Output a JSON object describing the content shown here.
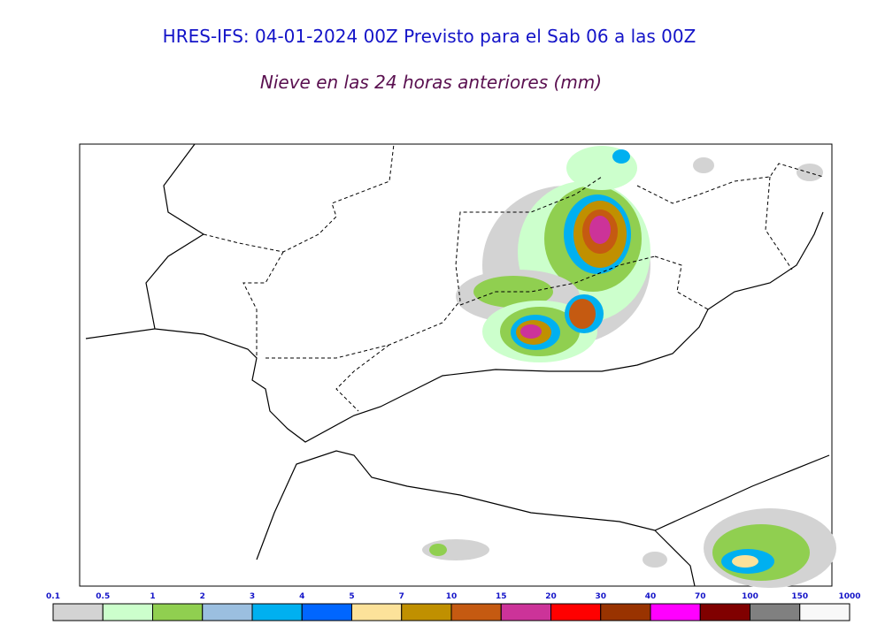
{
  "header": {
    "title": "HRES-IFS: 04-01-2024 00Z Previsto para el Sab 06 a las 00Z",
    "subtitle": "Nieve en las 24 horas anteriores (mm)"
  },
  "legend": {
    "ticks": [
      0.1,
      0.5,
      1,
      2,
      3,
      4,
      5,
      7,
      10,
      15,
      20,
      30,
      40,
      70,
      100,
      150,
      1000
    ],
    "colors": [
      "#d3d3d3",
      "#ccffcc",
      "#90cf50",
      "#9bbfe0",
      "#00b0f0",
      "#0066ff",
      "#fce29a",
      "#c09000",
      "#c55a11",
      "#cc3399",
      "#ff0000",
      "#993300",
      "#ff00ff",
      "#800000",
      "#808080",
      "#f8f8f8"
    ]
  }
}
